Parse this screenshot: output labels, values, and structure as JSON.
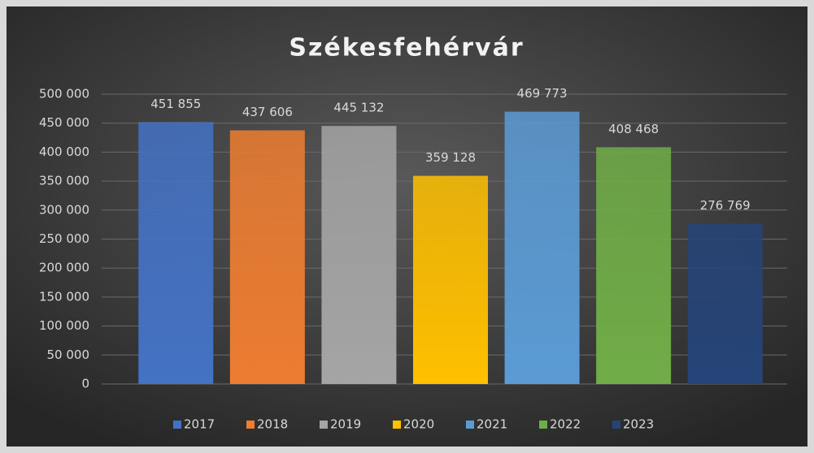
{
  "chart_data": {
    "type": "bar",
    "title": "Székesfehérvár",
    "series": [
      {
        "name": "2017",
        "color": "#4472c4",
        "values": [
          451855
        ],
        "value_labels": [
          "451 855"
        ]
      },
      {
        "name": "2018",
        "color": "#ed7d31",
        "values": [
          437606
        ],
        "value_labels": [
          "437 606"
        ]
      },
      {
        "name": "2019",
        "color": "#a5a5a5",
        "values": [
          445132
        ],
        "value_labels": [
          "445 132"
        ]
      },
      {
        "name": "2020",
        "color": "#ffc000",
        "values": [
          359128
        ],
        "value_labels": [
          "359 128"
        ]
      },
      {
        "name": "2021",
        "color": "#5b9bd5",
        "values": [
          469773
        ],
        "value_labels": [
          "469 773"
        ]
      },
      {
        "name": "2022",
        "color": "#70ad47",
        "values": [
          408468
        ],
        "value_labels": [
          "408 468"
        ]
      },
      {
        "name": "2023",
        "color": "#264478",
        "values": [
          276769
        ],
        "value_labels": [
          "276 769"
        ]
      }
    ],
    "ylim": [
      0,
      500000
    ],
    "yticks": [
      0,
      {
        "value": 50000,
        "label": "50 000"
      },
      {
        "value": 100000,
        "label": "100 000"
      },
      {
        "value": 150000,
        "label": "150 000"
      },
      {
        "value": 200000,
        "label": "200 000"
      },
      {
        "value": 250000,
        "label": "250 000"
      },
      {
        "value": 300000,
        "label": "300 000"
      },
      {
        "value": 350000,
        "label": "350 000"
      },
      {
        "value": 400000,
        "label": "400 000"
      },
      {
        "value": 450000,
        "label": "450 000"
      },
      {
        "value": 500000,
        "label": "500 000"
      }
    ],
    "grid": true,
    "legend": "bottom"
  }
}
